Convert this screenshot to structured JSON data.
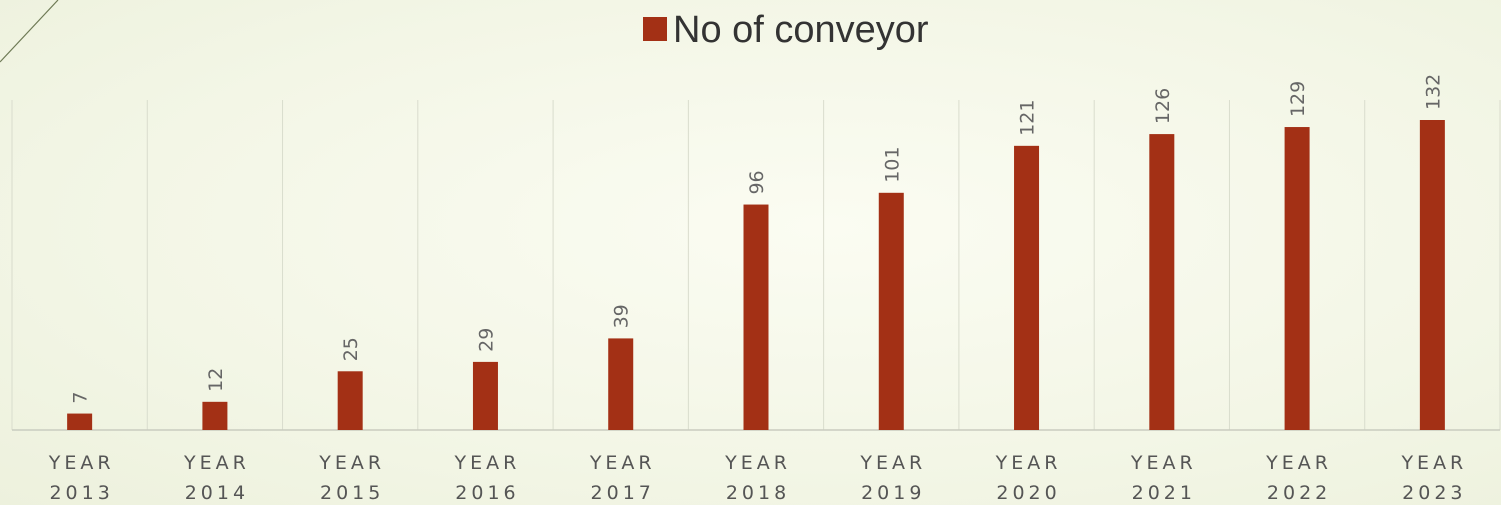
{
  "chart_data": {
    "type": "bar",
    "categories": [
      [
        "YEAR",
        "2013"
      ],
      [
        "YEAR",
        "2014"
      ],
      [
        "YEAR",
        "2015"
      ],
      [
        "YEAR",
        "2016"
      ],
      [
        "YEAR",
        "2017"
      ],
      [
        "YEAR",
        "2018"
      ],
      [
        "YEAR",
        "2019"
      ],
      [
        "YEAR",
        "2020"
      ],
      [
        "YEAR",
        "2021"
      ],
      [
        "YEAR",
        "2022"
      ],
      [
        "YEAR",
        "2023"
      ]
    ],
    "series": [
      {
        "name": "No of conveyor",
        "values": [
          7,
          12,
          25,
          29,
          39,
          96,
          101,
          121,
          126,
          129,
          132
        ],
        "color": "#a33015"
      }
    ],
    "data_labels": [
      "7",
      "12",
      "25",
      "29",
      "39",
      "96",
      "101",
      "121",
      "126",
      "129",
      "132"
    ],
    "ylim": [
      0,
      132
    ],
    "grid": "vertical",
    "legend_position": "top-center",
    "gridline_color": "#d9dccd",
    "axis_color": "#c9ccbf"
  }
}
